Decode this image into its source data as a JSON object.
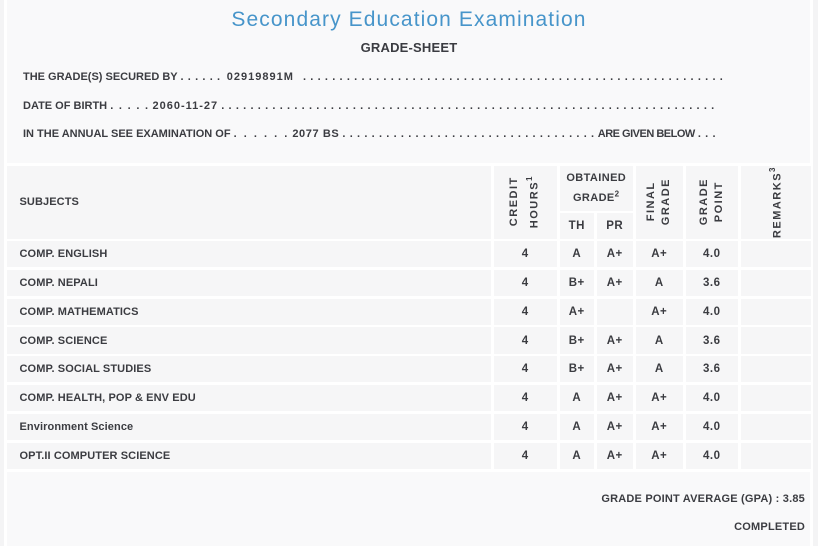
{
  "page": {
    "title": "Secondary Education Examination",
    "subtitle": "GRADE-SHEET",
    "colors": {
      "title_blue": "#4d9cd3",
      "text_dark": "#3b3c41",
      "page_background": "#f9f9fa",
      "cell_background": "#f6f6f7",
      "separator": "#ffffff"
    }
  },
  "info_lines": [
    {
      "label": "THE GRADE(S) SECURED BY",
      "leader1": ". . . . . .",
      "value": "02919891M",
      "leader2": ". . . . . . . . . . . . . . . . . . . . . . . . . . . . . . . . . . . . . . . . . . . . . . . . . . . . . . . . . ."
    },
    {
      "label": "DATE OF BIRTH",
      "leader1": ". . . . .",
      "value": "2060-11-27",
      "leader2": ". . . . . . . . . . . . . . . . . . . . . . . . . . . . . . . . . . . . . . . . . . . . . . . . . . . . . . . . . . . . . . . . . . . ."
    },
    {
      "label": "IN THE ANNUAL SEE EXAMINATION OF",
      "leader1": ". . . . . .",
      "value": "2077 BS",
      "leader2": ". . . . . . . . . . . . . . . . . . . . . . . . . . . . . . . . . . .",
      "suffix": "ARE GIVEN BELOW",
      "leader3": ". . ."
    }
  ],
  "table": {
    "headers": {
      "subjects": "SUBJECTS",
      "credit_hours": {
        "line1": "CREDIT",
        "line2": "HOURS",
        "sup": "1"
      },
      "obtained_grade": {
        "line1": "OBTAINED",
        "line2": "GRADE",
        "sup": "2"
      },
      "th": "TH",
      "pr": "PR",
      "final_grade": {
        "line1": "FINAL",
        "line2": "GRADE"
      },
      "grade_point": {
        "line1": "GRADE",
        "line2": "POINT"
      },
      "remarks": {
        "line1": "REMARKS",
        "sup": "3"
      }
    },
    "rows": [
      {
        "subject": "COMP. ENGLISH",
        "credit": "4",
        "th": "A",
        "pr": "A+",
        "final": "A+",
        "gp": "4.0",
        "remarks": ""
      },
      {
        "subject": "COMP. NEPALI",
        "credit": "4",
        "th": "B+",
        "pr": "A+",
        "final": "A",
        "gp": "3.6",
        "remarks": ""
      },
      {
        "subject": "COMP. MATHEMATICS",
        "credit": "4",
        "th": "A+",
        "pr": "",
        "final": "A+",
        "gp": "4.0",
        "remarks": ""
      },
      {
        "subject": "COMP. SCIENCE",
        "credit": "4",
        "th": "B+",
        "pr": "A+",
        "final": "A",
        "gp": "3.6",
        "remarks": ""
      },
      {
        "subject": "COMP. SOCIAL STUDIES",
        "credit": "4",
        "th": "B+",
        "pr": "A+",
        "final": "A",
        "gp": "3.6",
        "remarks": ""
      },
      {
        "subject": "COMP. HEALTH, POP & ENV EDU",
        "credit": "4",
        "th": "A",
        "pr": "A+",
        "final": "A+",
        "gp": "4.0",
        "remarks": ""
      },
      {
        "subject": "Environment Science",
        "credit": "4",
        "th": "A",
        "pr": "A+",
        "final": "A+",
        "gp": "4.0",
        "remarks": ""
      },
      {
        "subject": "OPT.II COMPUTER SCIENCE",
        "credit": "4",
        "th": "A",
        "pr": "A+",
        "final": "A+",
        "gp": "4.0",
        "remarks": ""
      }
    ]
  },
  "summary": {
    "gpa_label": "GRADE POINT AVERAGE (GPA)",
    "separator": " : ",
    "gpa_value": "3.85",
    "status": "COMPLETED"
  }
}
